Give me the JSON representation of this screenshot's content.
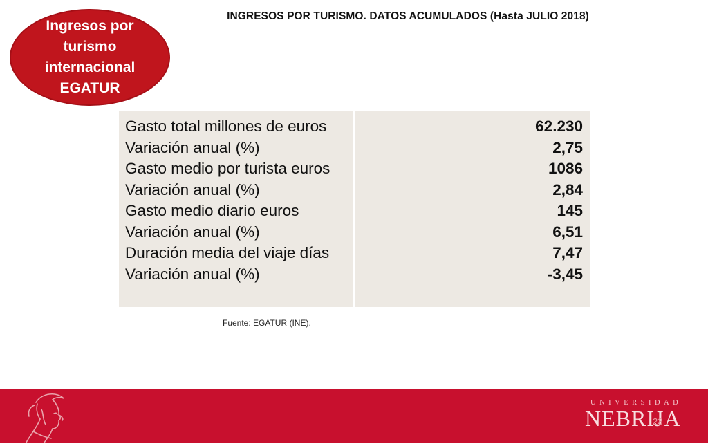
{
  "header": {
    "title": "INGRESOS POR TURISMO. DATOS ACUMULADOS (Hasta JULIO 2018)"
  },
  "badge": {
    "text": "Ingresos por turismo internacional EGATUR",
    "color": "#c0151d"
  },
  "table": {
    "rows": [
      {
        "label": "Gasto total millones de euros",
        "value": "62.230"
      },
      {
        "label": "Variación anual (%)",
        "value": "2,75"
      },
      {
        "label": "Gasto medio por turista euros",
        "value": "1086"
      },
      {
        "label": "Variación anual (%)",
        "value": "2,84"
      },
      {
        "label": "Gasto medio diario euros",
        "value": "145"
      },
      {
        "label": "Variación anual (%)",
        "value": "6,51"
      },
      {
        "label": "Duración media del viaje días",
        "value": "7,47"
      },
      {
        "label": "Variación anual (%)",
        "value": "-3,45"
      }
    ],
    "background": "#ede9e3"
  },
  "source": "Fuente: EGATUR (INE).",
  "footer": {
    "university_small": "UNIVERSIDAD",
    "university_name": "NEBRIJA",
    "page_number": "23",
    "color": "#c8102e",
    "emblem_icon": "portrait-emblem-icon"
  }
}
